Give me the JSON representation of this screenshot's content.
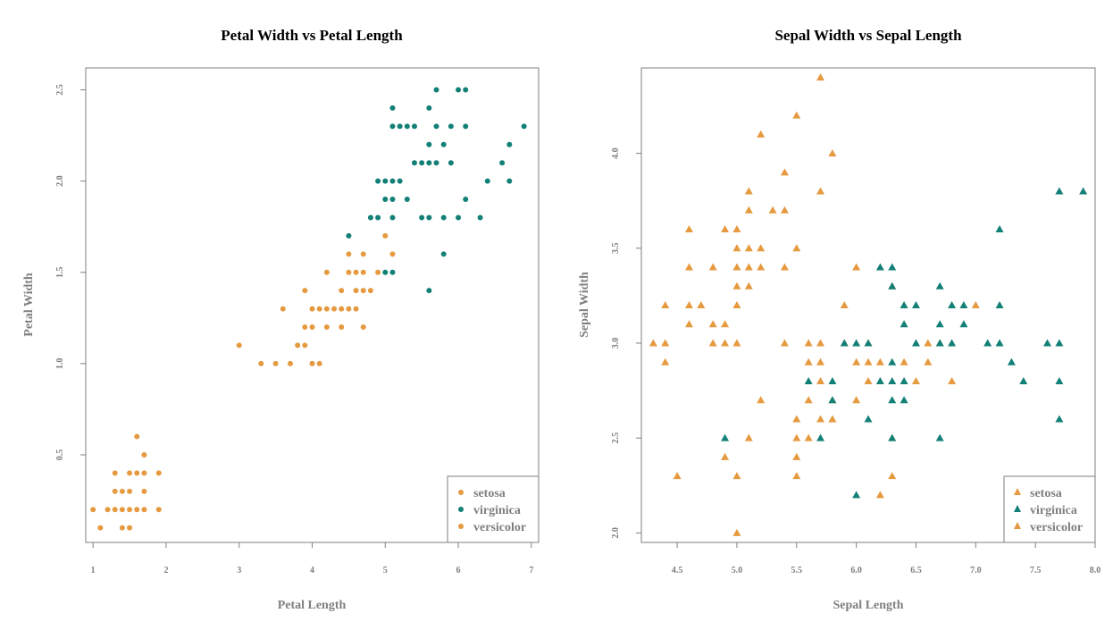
{
  "colors": {
    "orange": "#E69A40",
    "teal": "#138077",
    "axis": "#7f7f7f"
  },
  "chart_data": [
    {
      "type": "scatter",
      "title": "Petal Width vs Petal Length",
      "xlabel": "Petal Length",
      "ylabel": "Petal Width",
      "xlim": [
        0.9,
        7.1
      ],
      "ylim": [
        0.02,
        2.62
      ],
      "xticks": [
        1,
        2,
        3,
        4,
        5,
        6,
        7
      ],
      "xtick_labels": [
        "1",
        "2",
        "3",
        "4",
        "5",
        "6",
        "7"
      ],
      "yticks": [
        0.5,
        1.0,
        1.5,
        2.0,
        2.5
      ],
      "ytick_labels": [
        "0.5",
        "1.0",
        "1.5",
        "2.0",
        "2.5"
      ],
      "grid": false,
      "marker": "circle",
      "legend": {
        "position": "bottom-right",
        "entries": [
          {
            "label": "setosa",
            "color": "#E69A40"
          },
          {
            "label": "virginica",
            "color": "#138077"
          },
          {
            "label": "versicolor",
            "color": "#E69A40"
          }
        ]
      },
      "series": [
        {
          "name": "setosa",
          "color": "#E69A40",
          "points": [
            [
              1.0,
              0.2
            ],
            [
              1.1,
              0.1
            ],
            [
              1.2,
              0.2
            ],
            [
              1.3,
              0.2
            ],
            [
              1.3,
              0.3
            ],
            [
              1.3,
              0.4
            ],
            [
              1.4,
              0.1
            ],
            [
              1.4,
              0.2
            ],
            [
              1.4,
              0.3
            ],
            [
              1.5,
              0.1
            ],
            [
              1.5,
              0.2
            ],
            [
              1.5,
              0.3
            ],
            [
              1.5,
              0.4
            ],
            [
              1.6,
              0.2
            ],
            [
              1.6,
              0.4
            ],
            [
              1.6,
              0.6
            ],
            [
              1.7,
              0.2
            ],
            [
              1.7,
              0.3
            ],
            [
              1.7,
              0.4
            ],
            [
              1.7,
              0.5
            ],
            [
              1.9,
              0.2
            ],
            [
              1.9,
              0.4
            ]
          ]
        },
        {
          "name": "versicolor",
          "color": "#E69A40",
          "points": [
            [
              3.0,
              1.1
            ],
            [
              3.3,
              1.0
            ],
            [
              3.5,
              1.0
            ],
            [
              3.6,
              1.3
            ],
            [
              3.7,
              1.0
            ],
            [
              3.8,
              1.1
            ],
            [
              3.9,
              1.1
            ],
            [
              3.9,
              1.2
            ],
            [
              3.9,
              1.4
            ],
            [
              4.0,
              1.0
            ],
            [
              4.0,
              1.2
            ],
            [
              4.0,
              1.3
            ],
            [
              4.1,
              1.0
            ],
            [
              4.1,
              1.3
            ],
            [
              4.2,
              1.2
            ],
            [
              4.2,
              1.3
            ],
            [
              4.2,
              1.5
            ],
            [
              4.3,
              1.3
            ],
            [
              4.4,
              1.2
            ],
            [
              4.4,
              1.3
            ],
            [
              4.4,
              1.4
            ],
            [
              4.5,
              1.3
            ],
            [
              4.5,
              1.5
            ],
            [
              4.5,
              1.6
            ],
            [
              4.6,
              1.3
            ],
            [
              4.6,
              1.4
            ],
            [
              4.6,
              1.5
            ],
            [
              4.7,
              1.2
            ],
            [
              4.7,
              1.4
            ],
            [
              4.7,
              1.5
            ],
            [
              4.7,
              1.6
            ],
            [
              4.8,
              1.4
            ],
            [
              4.9,
              1.5
            ],
            [
              5.0,
              1.7
            ],
            [
              5.1,
              1.6
            ]
          ]
        },
        {
          "name": "virginica",
          "color": "#138077",
          "points": [
            [
              4.5,
              1.7
            ],
            [
              4.8,
              1.8
            ],
            [
              4.9,
              1.8
            ],
            [
              4.9,
              2.0
            ],
            [
              5.0,
              1.5
            ],
            [
              5.0,
              1.9
            ],
            [
              5.0,
              2.0
            ],
            [
              5.1,
              1.5
            ],
            [
              5.1,
              1.8
            ],
            [
              5.1,
              1.9
            ],
            [
              5.1,
              2.0
            ],
            [
              5.1,
              2.3
            ],
            [
              5.1,
              2.4
            ],
            [
              5.2,
              2.0
            ],
            [
              5.2,
              2.3
            ],
            [
              5.3,
              1.9
            ],
            [
              5.3,
              2.3
            ],
            [
              5.4,
              2.1
            ],
            [
              5.4,
              2.3
            ],
            [
              5.5,
              1.8
            ],
            [
              5.5,
              2.1
            ],
            [
              5.6,
              1.4
            ],
            [
              5.6,
              1.8
            ],
            [
              5.6,
              2.1
            ],
            [
              5.6,
              2.2
            ],
            [
              5.6,
              2.4
            ],
            [
              5.7,
              2.1
            ],
            [
              5.7,
              2.3
            ],
            [
              5.7,
              2.5
            ],
            [
              5.8,
              1.6
            ],
            [
              5.8,
              1.8
            ],
            [
              5.8,
              2.2
            ],
            [
              5.9,
              2.1
            ],
            [
              5.9,
              2.3
            ],
            [
              6.0,
              1.8
            ],
            [
              6.0,
              2.5
            ],
            [
              6.1,
              1.9
            ],
            [
              6.1,
              2.3
            ],
            [
              6.1,
              2.5
            ],
            [
              6.3,
              1.8
            ],
            [
              6.4,
              2.0
            ],
            [
              6.6,
              2.1
            ],
            [
              6.7,
              2.0
            ],
            [
              6.7,
              2.2
            ],
            [
              6.9,
              2.3
            ]
          ]
        }
      ]
    },
    {
      "type": "scatter",
      "title": "Sepal Width vs Sepal Length",
      "xlabel": "Sepal Length",
      "ylabel": "Sepal Width",
      "xlim": [
        4.2,
        8.0
      ],
      "ylim": [
        1.95,
        4.45
      ],
      "xticks": [
        4.5,
        5.0,
        5.5,
        6.0,
        6.5,
        7.0,
        7.5,
        8.0
      ],
      "xtick_labels": [
        "4.5",
        "5.0",
        "5.5",
        "6.0",
        "6.5",
        "7.0",
        "7.5",
        "8.0"
      ],
      "yticks": [
        2.0,
        2.5,
        3.0,
        3.5,
        4.0
      ],
      "ytick_labels": [
        "2.0",
        "2.5",
        "3.0",
        "3.5",
        "4.0"
      ],
      "grid": false,
      "marker": "triangle",
      "legend": {
        "position": "bottom-right",
        "entries": [
          {
            "label": "setosa",
            "color": "#E69A40"
          },
          {
            "label": "virginica",
            "color": "#138077"
          },
          {
            "label": "versicolor",
            "color": "#E69A40"
          }
        ]
      },
      "series": [
        {
          "name": "setosa",
          "color": "#E69A40",
          "points": [
            [
              4.3,
              3.0
            ],
            [
              4.4,
              2.9
            ],
            [
              4.4,
              3.0
            ],
            [
              4.4,
              3.2
            ],
            [
              4.5,
              2.3
            ],
            [
              4.6,
              3.1
            ],
            [
              4.6,
              3.2
            ],
            [
              4.6,
              3.4
            ],
            [
              4.6,
              3.6
            ],
            [
              4.7,
              3.2
            ],
            [
              4.8,
              3.0
            ],
            [
              4.8,
              3.1
            ],
            [
              4.8,
              3.4
            ],
            [
              4.9,
              3.0
            ],
            [
              4.9,
              3.1
            ],
            [
              4.9,
              3.6
            ],
            [
              5.0,
              3.0
            ],
            [
              5.0,
              3.2
            ],
            [
              5.0,
              3.3
            ],
            [
              5.0,
              3.4
            ],
            [
              5.0,
              3.5
            ],
            [
              5.0,
              3.6
            ],
            [
              5.1,
              3.3
            ],
            [
              5.1,
              3.4
            ],
            [
              5.1,
              3.5
            ],
            [
              5.1,
              3.7
            ],
            [
              5.1,
              3.8
            ],
            [
              5.2,
              3.4
            ],
            [
              5.2,
              3.5
            ],
            [
              5.2,
              4.1
            ],
            [
              5.3,
              3.7
            ],
            [
              5.4,
              3.4
            ],
            [
              5.4,
              3.7
            ],
            [
              5.4,
              3.9
            ],
            [
              5.5,
              3.5
            ],
            [
              5.5,
              4.2
            ],
            [
              5.7,
              3.8
            ],
            [
              5.7,
              4.4
            ],
            [
              5.8,
              4.0
            ]
          ]
        },
        {
          "name": "versicolor",
          "color": "#E69A40",
          "points": [
            [
              4.9,
              2.4
            ],
            [
              5.0,
              2.0
            ],
            [
              5.0,
              2.3
            ],
            [
              5.1,
              2.5
            ],
            [
              5.2,
              2.7
            ],
            [
              5.4,
              3.0
            ],
            [
              5.5,
              2.3
            ],
            [
              5.5,
              2.4
            ],
            [
              5.5,
              2.5
            ],
            [
              5.5,
              2.6
            ],
            [
              5.6,
              2.5
            ],
            [
              5.6,
              2.7
            ],
            [
              5.6,
              2.9
            ],
            [
              5.6,
              3.0
            ],
            [
              5.7,
              2.6
            ],
            [
              5.7,
              2.8
            ],
            [
              5.7,
              2.9
            ],
            [
              5.7,
              3.0
            ],
            [
              5.8,
              2.6
            ],
            [
              5.8,
              2.7
            ],
            [
              5.9,
              3.0
            ],
            [
              5.9,
              3.2
            ],
            [
              6.0,
              2.7
            ],
            [
              6.0,
              2.9
            ],
            [
              6.0,
              3.4
            ],
            [
              6.1,
              2.8
            ],
            [
              6.1,
              2.9
            ],
            [
              6.1,
              3.0
            ],
            [
              6.2,
              2.2
            ],
            [
              6.2,
              2.9
            ],
            [
              6.3,
              2.3
            ],
            [
              6.3,
              2.5
            ],
            [
              6.3,
              3.3
            ],
            [
              6.4,
              2.9
            ],
            [
              6.5,
              2.8
            ],
            [
              6.6,
              2.9
            ],
            [
              6.6,
              3.0
            ],
            [
              6.7,
              3.0
            ],
            [
              6.8,
              2.8
            ],
            [
              7.0,
              3.2
            ]
          ]
        },
        {
          "name": "virginica",
          "color": "#138077",
          "points": [
            [
              4.9,
              2.5
            ],
            [
              5.6,
              2.8
            ],
            [
              5.7,
              2.5
            ],
            [
              5.8,
              2.7
            ],
            [
              5.8,
              2.8
            ],
            [
              5.9,
              3.0
            ],
            [
              6.0,
              2.2
            ],
            [
              6.0,
              3.0
            ],
            [
              6.1,
              2.6
            ],
            [
              6.1,
              3.0
            ],
            [
              6.2,
              2.8
            ],
            [
              6.2,
              3.4
            ],
            [
              6.3,
              2.5
            ],
            [
              6.3,
              2.7
            ],
            [
              6.3,
              2.8
            ],
            [
              6.3,
              2.9
            ],
            [
              6.3,
              3.3
            ],
            [
              6.3,
              3.4
            ],
            [
              6.4,
              2.7
            ],
            [
              6.4,
              2.8
            ],
            [
              6.4,
              3.1
            ],
            [
              6.4,
              3.2
            ],
            [
              6.5,
              3.0
            ],
            [
              6.5,
              3.2
            ],
            [
              6.7,
              2.5
            ],
            [
              6.7,
              3.0
            ],
            [
              6.7,
              3.1
            ],
            [
              6.7,
              3.3
            ],
            [
              6.8,
              3.0
            ],
            [
              6.8,
              3.2
            ],
            [
              6.9,
              3.1
            ],
            [
              6.9,
              3.2
            ],
            [
              7.1,
              3.0
            ],
            [
              7.2,
              3.0
            ],
            [
              7.2,
              3.2
            ],
            [
              7.2,
              3.6
            ],
            [
              7.3,
              2.9
            ],
            [
              7.4,
              2.8
            ],
            [
              7.6,
              3.0
            ],
            [
              7.7,
              2.6
            ],
            [
              7.7,
              2.8
            ],
            [
              7.7,
              3.0
            ],
            [
              7.7,
              3.8
            ],
            [
              7.9,
              3.8
            ]
          ]
        }
      ]
    }
  ]
}
